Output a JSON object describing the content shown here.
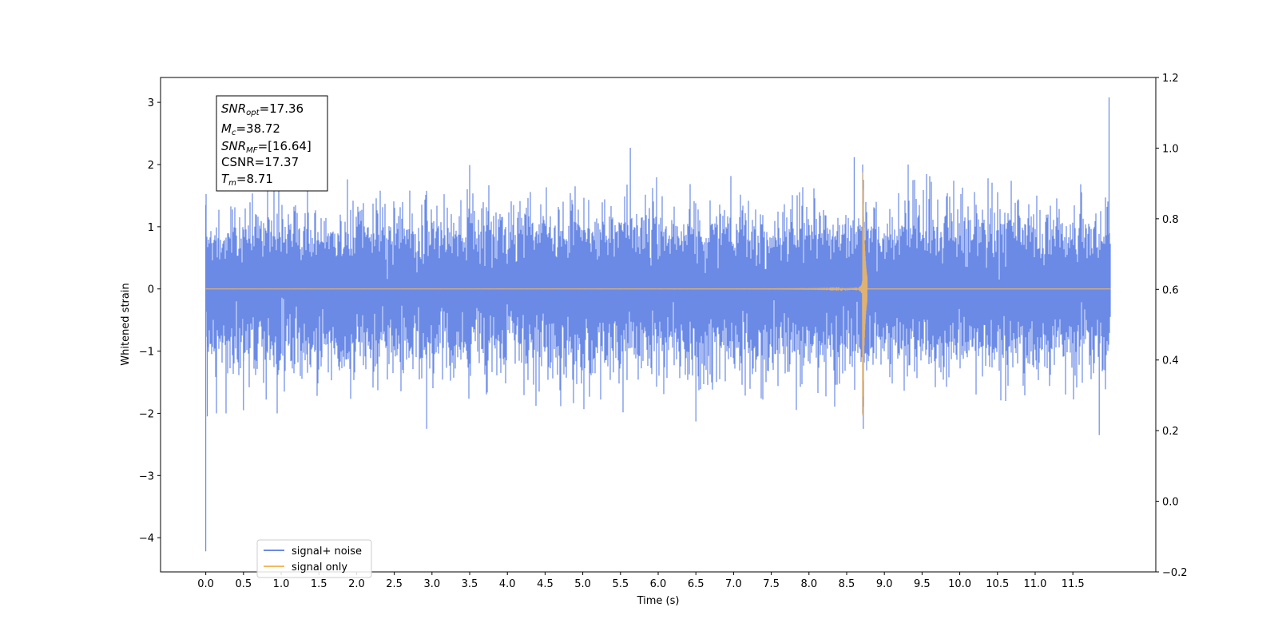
{
  "chart_data": {
    "type": "line",
    "xlabel": "Time (s)",
    "ylabel": "Whitened strain",
    "xlim": [
      -0.6,
      12.6
    ],
    "ylim": [
      -4.55,
      3.4
    ],
    "y2lim": [
      -0.2,
      1.2
    ],
    "x_ticks": [
      "0.0",
      "0.5",
      "1.0",
      "1.5",
      "2.0",
      "2.5",
      "3.0",
      "3.5",
      "4.0",
      "4.5",
      "5.0",
      "5.5",
      "6.0",
      "6.5",
      "7.0",
      "7.5",
      "8.0",
      "8.5",
      "9.0",
      "9.5",
      "10.0",
      "10.5",
      "11.0",
      "11.5"
    ],
    "y_ticks": [
      "3",
      "2",
      "1",
      "0",
      "−1",
      "−2",
      "−3",
      "−4"
    ],
    "y2_ticks": [
      "1.2",
      "1.0",
      "0.8",
      "0.6",
      "0.4",
      "0.2",
      "0.0",
      "−0.2"
    ],
    "grid": false,
    "legend_placement": "lower-left",
    "series": [
      {
        "name": "signal+ noise",
        "color": "#6a8ae6",
        "time_range": [
          0.0,
          12.0
        ],
        "noise_std": 0.55,
        "peaks": [
          {
            "t": 0.0,
            "v": -4.22
          },
          {
            "t": 0.0,
            "v": 1.35
          },
          {
            "t": 0.02,
            "v": -2.05
          },
          {
            "t": 0.5,
            "v": -1.95
          },
          {
            "t": 0.8,
            "v": -1.78
          },
          {
            "t": 2.93,
            "v": -2.25
          },
          {
            "t": 5.63,
            "v": 2.27
          },
          {
            "t": 6.5,
            "v": -2.13
          },
          {
            "t": 8.6,
            "v": 2.12
          },
          {
            "t": 8.72,
            "v": -2.25
          },
          {
            "t": 11.85,
            "v": -2.35
          },
          {
            "t": 11.98,
            "v": 3.08
          }
        ]
      },
      {
        "name": "signal only",
        "color": "#f5b95c",
        "merger_time": 8.71,
        "peak_amplitude": 2.2
      }
    ]
  },
  "info_box": {
    "snr_opt_symbol": "SNR",
    "snr_opt_sub": "opt",
    "snr_opt_value": "=17.36",
    "mc_symbol": "M",
    "mc_sub": "c",
    "mc_value": "=38.72",
    "snr_mf_symbol": "SNR",
    "snr_mf_sub": "MF",
    "snr_mf_value": "=[16.64]",
    "csnr_text": "CSNR=17.37",
    "tm_symbol": "T",
    "tm_sub": "m",
    "tm_value": "=8.71"
  }
}
